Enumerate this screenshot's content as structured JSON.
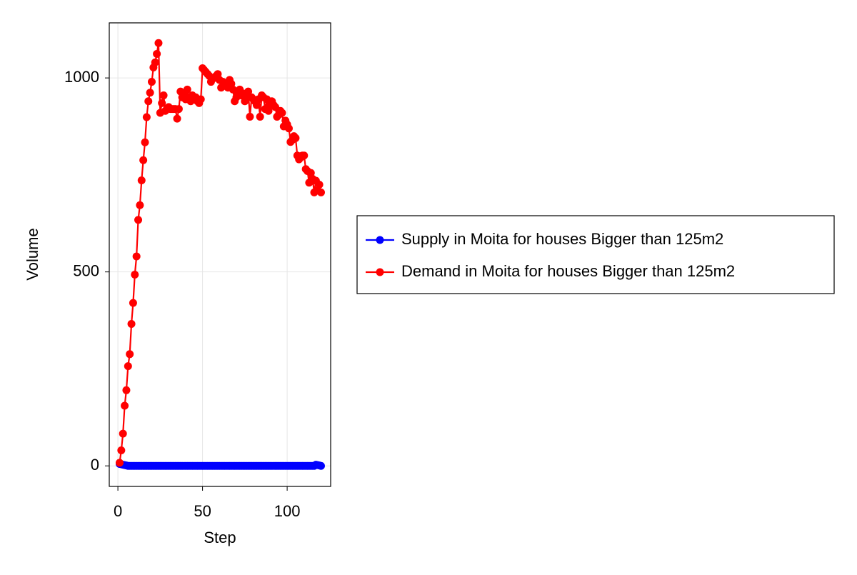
{
  "chart_data": {
    "type": "line",
    "markers": true,
    "xlabel": "Step",
    "ylabel": "Volume",
    "x": [
      1,
      2,
      3,
      4,
      5,
      6,
      7,
      8,
      9,
      10,
      11,
      12,
      13,
      14,
      15,
      16,
      17,
      18,
      19,
      20,
      21,
      22,
      23,
      24,
      25,
      26,
      27,
      28,
      29,
      30,
      31,
      32,
      33,
      34,
      35,
      36,
      37,
      38,
      39,
      40,
      41,
      42,
      43,
      44,
      45,
      46,
      47,
      48,
      49,
      50,
      51,
      52,
      53,
      54,
      55,
      56,
      57,
      58,
      59,
      60,
      61,
      62,
      63,
      64,
      65,
      66,
      67,
      68,
      69,
      70,
      71,
      72,
      73,
      74,
      75,
      76,
      77,
      78,
      79,
      80,
      81,
      82,
      83,
      84,
      85,
      86,
      87,
      88,
      89,
      90,
      91,
      92,
      93,
      94,
      95,
      96,
      97,
      98,
      99,
      100,
      101,
      102,
      103,
      104,
      105,
      106,
      107,
      108,
      109,
      110,
      111,
      112,
      113,
      114,
      115,
      116,
      117,
      118,
      119,
      120
    ],
    "series": [
      {
        "name": "Supply in Moita for houses Bigger than 125m2",
        "color": "#0000ff",
        "values": [
          5,
          4,
          3,
          2,
          1,
          0,
          0,
          0,
          0,
          0,
          0,
          0,
          0,
          0,
          0,
          0,
          0,
          0,
          0,
          0,
          0,
          0,
          0,
          0,
          0,
          0,
          0,
          0,
          0,
          0,
          0,
          0,
          0,
          0,
          0,
          0,
          0,
          0,
          0,
          0,
          0,
          0,
          0,
          0,
          0,
          0,
          0,
          0,
          0,
          0,
          0,
          0,
          0,
          0,
          0,
          0,
          0,
          0,
          0,
          0,
          0,
          0,
          0,
          0,
          0,
          0,
          0,
          0,
          0,
          0,
          0,
          0,
          0,
          0,
          0,
          0,
          0,
          0,
          0,
          0,
          0,
          0,
          0,
          0,
          0,
          0,
          0,
          0,
          0,
          0,
          0,
          0,
          0,
          0,
          0,
          0,
          0,
          0,
          0,
          0,
          0,
          0,
          0,
          0,
          0,
          0,
          0,
          0,
          0,
          0,
          0,
          0,
          0,
          0,
          0,
          0,
          3,
          2,
          1,
          0
        ]
      },
      {
        "name": "Demand in Moita for houses Bigger than 125m2",
        "color": "#ff0000",
        "values": [
          8,
          40,
          83,
          155,
          195,
          257,
          288,
          366,
          420,
          493,
          540,
          634,
          672,
          736,
          788,
          834,
          899,
          940,
          962,
          990,
          1027,
          1040,
          1062,
          1090,
          910,
          935,
          955,
          915,
          920,
          925,
          920,
          920,
          920,
          920,
          895,
          920,
          965,
          950,
          960,
          945,
          970,
          950,
          940,
          955,
          945,
          950,
          940,
          935,
          945,
          1025,
          1020,
          1015,
          1010,
          1005,
          990,
          1000,
          1000,
          1005,
          1010,
          995,
          975,
          990,
          980,
          985,
          975,
          995,
          985,
          970,
          940,
          950,
          960,
          970,
          955,
          960,
          940,
          955,
          965,
          900,
          950,
          945,
          940,
          930,
          945,
          900,
          955,
          950,
          920,
          945,
          915,
          930,
          940,
          930,
          925,
          900,
          905,
          915,
          910,
          875,
          890,
          880,
          870,
          835,
          840,
          850,
          845,
          800,
          790,
          795,
          800,
          800,
          765,
          760,
          730,
          755,
          740,
          705,
          735,
          710,
          725,
          705
        ]
      }
    ],
    "xlim": [
      -5.1,
      125.7
    ],
    "ylim": [
      -53,
      1142
    ],
    "xticks": [
      0,
      50,
      100
    ],
    "yticks": [
      0,
      500,
      1000
    ],
    "grid": true,
    "legend": "right"
  }
}
